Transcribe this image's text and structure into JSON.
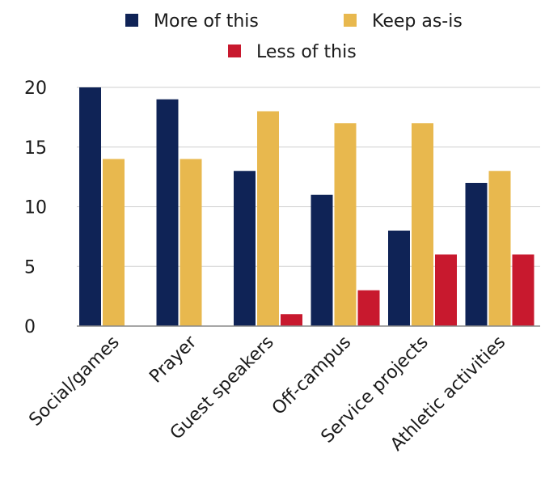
{
  "chart_data": {
    "type": "bar",
    "title": "",
    "xlabel": "",
    "ylabel": "",
    "categories": [
      "Social/games",
      "Prayer",
      "Guest speakers",
      "Off-campus",
      "Service projects",
      "Athletic activities"
    ],
    "series": [
      {
        "name": "More of this",
        "color": "#0f2356",
        "values": [
          20,
          19,
          13,
          11,
          8,
          12
        ]
      },
      {
        "name": "Keep as-is",
        "color": "#e8b84e",
        "values": [
          14,
          14,
          18,
          17,
          17,
          13
        ]
      },
      {
        "name": "Less of this",
        "color": "#c8192e",
        "values": [
          0,
          0,
          1,
          3,
          6,
          6
        ]
      }
    ],
    "ylim": [
      0,
      20
    ],
    "yticks": [
      0,
      5,
      10,
      15,
      20
    ],
    "grid": true,
    "legend_position": "top"
  }
}
